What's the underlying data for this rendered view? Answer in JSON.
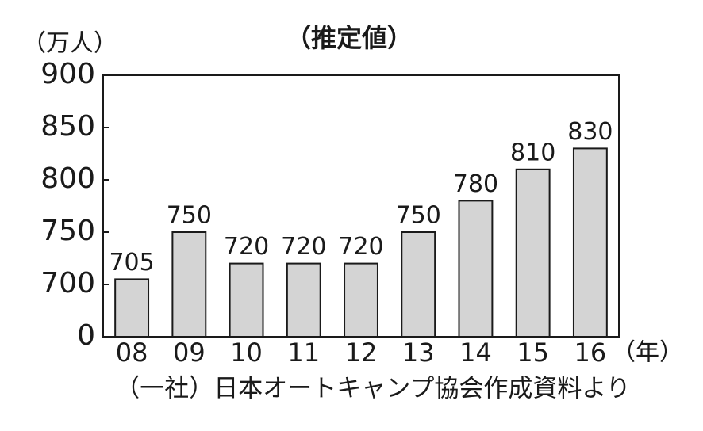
{
  "chart_data": {
    "type": "bar",
    "title": "（推定値）",
    "y_unit": "（万人）",
    "x_unit": "（年）",
    "source": "（一社）日本オートキャンプ協会作成資料より",
    "categories": [
      "08",
      "09",
      "10",
      "11",
      "12",
      "13",
      "14",
      "15",
      "16"
    ],
    "values": [
      705,
      750,
      720,
      720,
      720,
      750,
      780,
      810,
      830
    ],
    "color": "#d4d4d4",
    "ylim": [
      0,
      900
    ],
    "yticks": [
      0,
      700,
      750,
      800,
      850,
      900
    ],
    "grid": false
  }
}
